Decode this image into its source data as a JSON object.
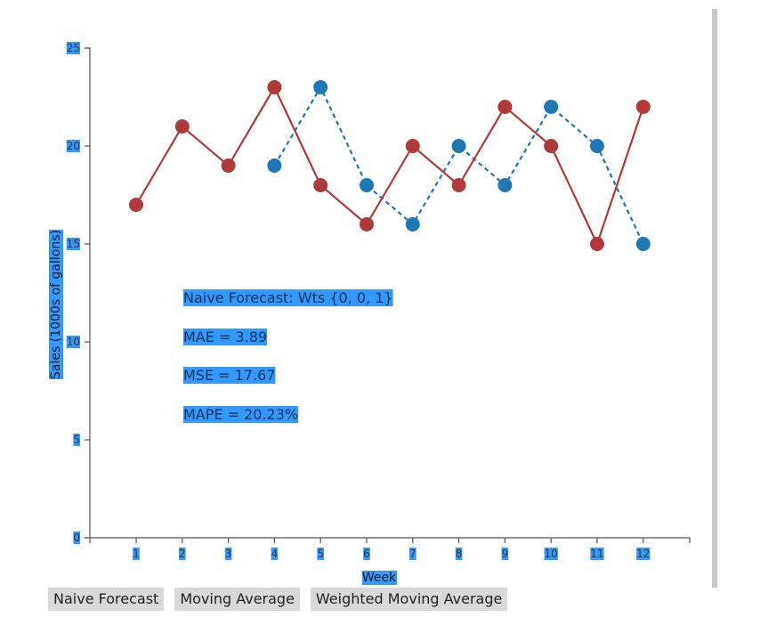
{
  "chart_data": {
    "type": "line",
    "x": [
      1,
      2,
      3,
      4,
      5,
      6,
      7,
      8,
      9,
      10,
      11,
      12
    ],
    "xlabel": "Week",
    "ylabel": "Sales (1000s of gallons)",
    "ylim": [
      0,
      25
    ],
    "yticks": [
      0,
      5,
      10,
      15,
      20,
      25
    ],
    "grid": false,
    "series": [
      {
        "color": "#b03a3a",
        "style": "solid",
        "x": [
          1,
          2,
          3,
          4,
          5,
          6,
          7,
          8,
          9,
          10,
          11,
          12
        ],
        "values": [
          17,
          21,
          19,
          23,
          18,
          16,
          20,
          18,
          22,
          20,
          15,
          22
        ]
      },
      {
        "color": "#1f77b4",
        "style": "dashed",
        "x": [
          4,
          5,
          6,
          7,
          8,
          9,
          10,
          11,
          12
        ],
        "values": [
          19,
          23,
          18,
          16,
          20,
          18,
          22,
          20,
          15
        ]
      }
    ],
    "annotations": {
      "title": "Naive Forecast: Wts {0, 0, 1}",
      "mae": "MAE = 3.89",
      "mse": "MSE = 17.67",
      "mape": "MAPE = 20.23%"
    }
  },
  "buttons": {
    "naive": "Naive Forecast",
    "moving": "Moving Average",
    "weighted": "Weighted Moving Average"
  }
}
